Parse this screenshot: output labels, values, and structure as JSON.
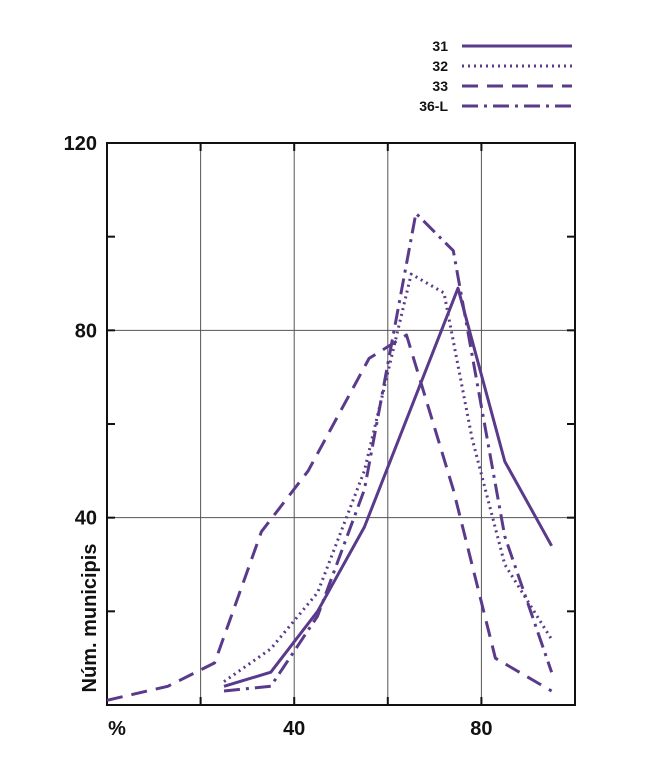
{
  "chart_data": {
    "type": "line",
    "xlabel": "%",
    "ylabel": "Núm. municipis",
    "xlim": [
      0,
      100
    ],
    "ylim": [
      0,
      120
    ],
    "x_ticks": [
      {
        "value": 0,
        "label": "%"
      },
      {
        "value": 40,
        "label": "40"
      },
      {
        "value": 80,
        "label": "80"
      }
    ],
    "y_ticks": [
      {
        "value": 40,
        "label": "40"
      },
      {
        "value": 80,
        "label": "80"
      },
      {
        "value": 120,
        "label": "120"
      }
    ],
    "x_grid": [
      20,
      40,
      60,
      80
    ],
    "y_grid": [
      40,
      80
    ],
    "x_minor_ticks": [
      20,
      40,
      60,
      80
    ],
    "y_minor_ticks": [
      20,
      40,
      60,
      80,
      100
    ],
    "grid": true,
    "legend_position": "top-right",
    "line_color": "#5a3a8a",
    "series": [
      {
        "name": "31",
        "style": "solid",
        "points": [
          [
            25,
            4
          ],
          [
            35,
            7
          ],
          [
            45,
            20
          ],
          [
            55,
            38
          ],
          [
            75,
            89
          ],
          [
            85,
            52
          ],
          [
            95,
            34
          ]
        ]
      },
      {
        "name": "32",
        "style": "dotted",
        "points": [
          [
            25,
            5
          ],
          [
            35,
            12
          ],
          [
            45,
            24
          ],
          [
            55,
            50
          ],
          [
            65,
            92
          ],
          [
            72,
            88
          ],
          [
            78,
            57
          ],
          [
            85,
            30
          ],
          [
            95,
            14
          ]
        ]
      },
      {
        "name": "33",
        "style": "dashed",
        "points": [
          [
            0,
            1
          ],
          [
            13,
            4
          ],
          [
            23,
            9
          ],
          [
            33,
            37
          ],
          [
            43,
            50
          ],
          [
            56,
            74
          ],
          [
            64,
            79
          ],
          [
            74,
            46
          ],
          [
            83,
            10
          ],
          [
            95,
            3
          ]
        ]
      },
      {
        "name": "36-L",
        "style": "dashdot",
        "points": [
          [
            25,
            3
          ],
          [
            35,
            4
          ],
          [
            45,
            19
          ],
          [
            55,
            46
          ],
          [
            66,
            105
          ],
          [
            74,
            97
          ],
          [
            85,
            36
          ],
          [
            95,
            7
          ]
        ]
      }
    ]
  }
}
